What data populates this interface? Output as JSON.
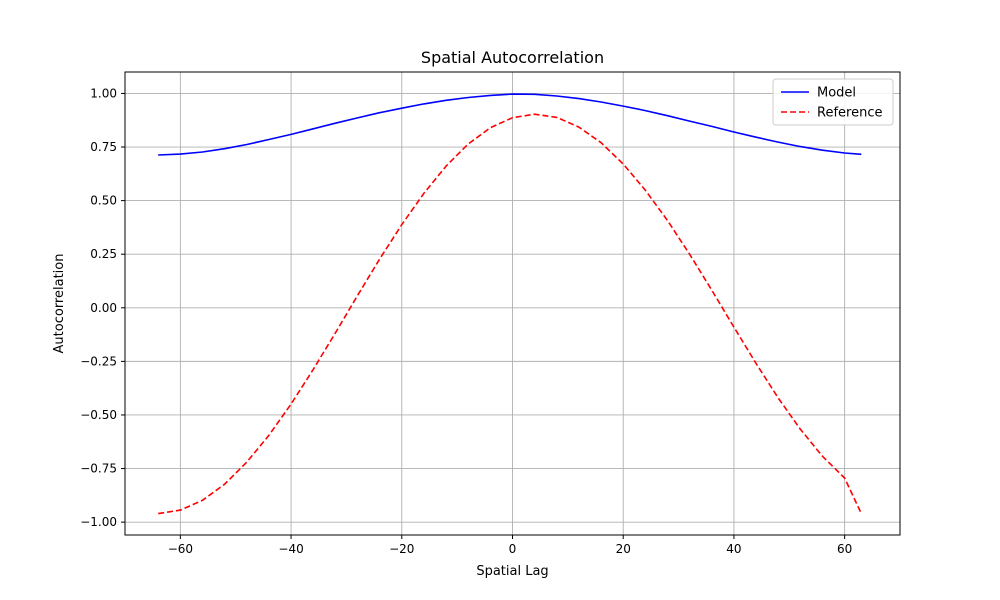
{
  "chart_data": {
    "type": "line",
    "title": "Spatial Autocorrelation",
    "xlabel": "Spatial Lag",
    "ylabel": "Autocorrelation",
    "xlim": [
      -70,
      70
    ],
    "ylim": [
      -1.06,
      1.1
    ],
    "xticks": [
      -60,
      -40,
      -20,
      0,
      20,
      40,
      60
    ],
    "xtick_labels": [
      "−60",
      "−40",
      "−20",
      "0",
      "20",
      "40",
      "60"
    ],
    "yticks": [
      -1.0,
      -0.75,
      -0.5,
      -0.25,
      0.0,
      0.25,
      0.5,
      0.75,
      1.0
    ],
    "ytick_labels": [
      "−1.00",
      "−0.75",
      "−0.50",
      "−0.25",
      "0.00",
      "0.25",
      "0.50",
      "0.75",
      "1.00"
    ],
    "grid": true,
    "legend_position": "top-right",
    "series": [
      {
        "name": "Model",
        "color": "#0000ff",
        "style": "solid",
        "x": [
          -64,
          -60,
          -56,
          -52,
          -48,
          -44,
          -40,
          -36,
          -32,
          -28,
          -24,
          -20,
          -16,
          -12,
          -8,
          -4,
          0,
          4,
          8,
          12,
          16,
          20,
          24,
          28,
          32,
          36,
          40,
          44,
          48,
          52,
          56,
          60,
          63
        ],
        "y": [
          0.713,
          0.717,
          0.727,
          0.742,
          0.762,
          0.785,
          0.809,
          0.835,
          0.861,
          0.886,
          0.91,
          0.931,
          0.951,
          0.968,
          0.981,
          0.991,
          0.997,
          0.996,
          0.988,
          0.976,
          0.96,
          0.941,
          0.92,
          0.896,
          0.871,
          0.846,
          0.82,
          0.796,
          0.773,
          0.752,
          0.735,
          0.722,
          0.716
        ]
      },
      {
        "name": "Reference",
        "color": "#ff0000",
        "style": "dashed",
        "x": [
          -64,
          -60,
          -56,
          -52,
          -48,
          -44,
          -40,
          -36,
          -32,
          -28,
          -24,
          -20,
          -16,
          -12,
          -8,
          -4,
          0,
          4,
          8,
          12,
          16,
          20,
          24,
          28,
          32,
          36,
          40,
          44,
          48,
          52,
          56,
          60,
          63
        ],
        "y": [
          -0.96,
          -0.944,
          -0.898,
          -0.823,
          -0.72,
          -0.595,
          -0.449,
          -0.288,
          -0.117,
          0.057,
          0.227,
          0.388,
          0.534,
          0.661,
          0.764,
          0.84,
          0.887,
          0.903,
          0.888,
          0.843,
          0.77,
          0.671,
          0.548,
          0.407,
          0.25,
          0.082,
          -0.09,
          -0.26,
          -0.421,
          -0.567,
          -0.693,
          -0.794,
          -0.96
        ]
      }
    ]
  }
}
